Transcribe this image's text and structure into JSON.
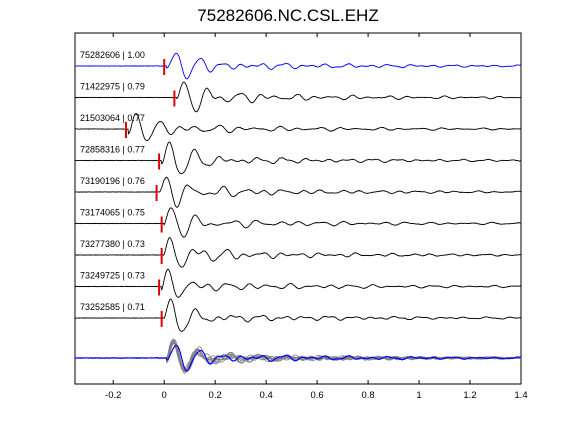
{
  "chart_data": {
    "type": "line",
    "title": "75282606.NC.CSL.EHZ",
    "xlabel": "",
    "ylabel": "",
    "xlim": [
      -0.35,
      1.4
    ],
    "xticks": [
      -0.2,
      0,
      0.2,
      0.4,
      0.6,
      0.8,
      1,
      1.2,
      1.4
    ],
    "xtick_labels": [
      "-0.2",
      "0",
      "0.2",
      "0.4",
      "0.6",
      "0.8",
      "1",
      "1.2",
      "1.4"
    ],
    "grid": false,
    "colors": {
      "master": "#0000ff",
      "trace": "#000000",
      "overlay": "#808080",
      "pick": "#e00000"
    },
    "series": [
      {
        "label": "75282606 | 1.00",
        "pick_x": 0.0,
        "master": true
      },
      {
        "label": "71422975 | 0.79",
        "pick_x": 0.04,
        "master": false
      },
      {
        "label": "21503064 | 0.77",
        "pick_x": -0.15,
        "master": false
      },
      {
        "label": "72858316 | 0.77",
        "pick_x": -0.02,
        "master": false
      },
      {
        "label": "73190196 | 0.76",
        "pick_x": -0.03,
        "master": false
      },
      {
        "label": "73174065 | 0.75",
        "pick_x": -0.01,
        "master": false
      },
      {
        "label": "73277380 | 0.73",
        "pick_x": -0.01,
        "master": false
      },
      {
        "label": "73249725 | 0.73",
        "pick_x": -0.02,
        "master": false
      },
      {
        "label": "73252585 | 0.71",
        "pick_x": -0.01,
        "master": false
      }
    ]
  }
}
